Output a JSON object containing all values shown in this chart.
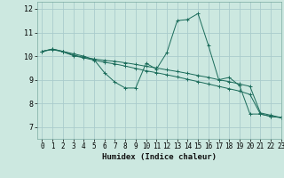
{
  "xlabel": "Humidex (Indice chaleur)",
  "bg_color": "#cce8e0",
  "grid_color": "#aacccc",
  "line_color": "#1a6b5a",
  "xlim": [
    -0.5,
    23
  ],
  "ylim": [
    6.5,
    12.3
  ],
  "xticks": [
    0,
    1,
    2,
    3,
    4,
    5,
    6,
    7,
    8,
    9,
    10,
    11,
    12,
    13,
    14,
    15,
    16,
    17,
    18,
    19,
    20,
    21,
    22,
    23
  ],
  "yticks": [
    7,
    8,
    9,
    10,
    11,
    12
  ],
  "series": [
    {
      "x": [
        0,
        1,
        2,
        3,
        4,
        5,
        6,
        7,
        8,
        9,
        10,
        11,
        12,
        13,
        14,
        15,
        16,
        17,
        18,
        19,
        20,
        21,
        22,
        23
      ],
      "y": [
        10.2,
        10.3,
        10.2,
        10.1,
        10.0,
        9.85,
        9.3,
        8.9,
        8.65,
        8.65,
        9.7,
        9.45,
        10.15,
        11.5,
        11.55,
        11.8,
        10.45,
        9.0,
        9.1,
        8.75,
        7.55,
        7.55,
        7.45,
        7.4
      ]
    },
    {
      "x": [
        0,
        1,
        2,
        3,
        4,
        5,
        6,
        7,
        8,
        9,
        10,
        11,
        12,
        13,
        14,
        15,
        16,
        17,
        18,
        19,
        20,
        21,
        22,
        23
      ],
      "y": [
        10.2,
        10.3,
        10.2,
        10.05,
        9.95,
        9.88,
        9.82,
        9.78,
        9.72,
        9.65,
        9.57,
        9.5,
        9.42,
        9.35,
        9.27,
        9.18,
        9.1,
        9.0,
        8.92,
        8.82,
        8.72,
        7.6,
        7.5,
        7.4
      ]
    },
    {
      "x": [
        0,
        1,
        2,
        3,
        4,
        5,
        6,
        7,
        8,
        9,
        10,
        11,
        12,
        13,
        14,
        15,
        16,
        17,
        18,
        19,
        20,
        21,
        22,
        23
      ],
      "y": [
        10.2,
        10.28,
        10.18,
        10.02,
        9.93,
        9.83,
        9.74,
        9.67,
        9.58,
        9.48,
        9.38,
        9.3,
        9.21,
        9.12,
        9.02,
        8.92,
        8.82,
        8.72,
        8.62,
        8.52,
        8.38,
        7.55,
        7.45,
        7.4
      ]
    }
  ]
}
